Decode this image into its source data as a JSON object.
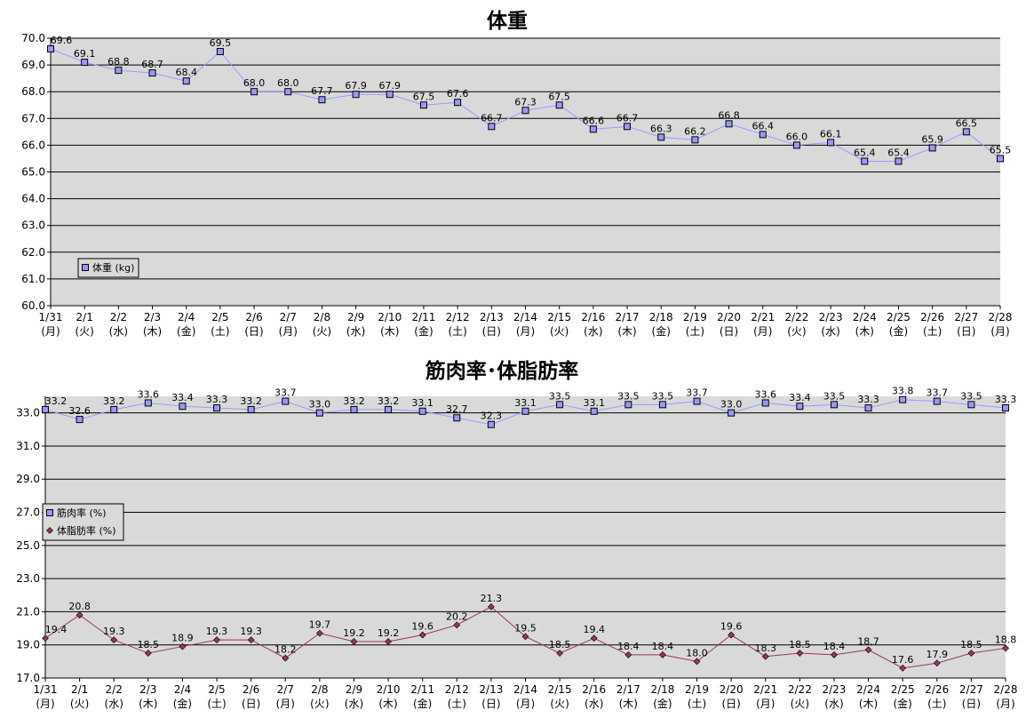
{
  "chart_data": [
    {
      "type": "line",
      "title": "体重",
      "categories": [
        "1/31",
        "2/1",
        "2/2",
        "2/3",
        "2/4",
        "2/5",
        "2/6",
        "2/7",
        "2/8",
        "2/9",
        "2/10",
        "2/11",
        "2/12",
        "2/13",
        "2/14",
        "2/15",
        "2/16",
        "2/17",
        "2/18",
        "2/19",
        "2/20",
        "2/21",
        "2/22",
        "2/23",
        "2/24",
        "2/25",
        "2/26",
        "2/27",
        "2/28"
      ],
      "weekdays": [
        "(月)",
        "(火)",
        "(水)",
        "(木)",
        "(金)",
        "(土)",
        "(日)",
        "(月)",
        "(火)",
        "(水)",
        "(木)",
        "(金)",
        "(土)",
        "(日)",
        "(月)",
        "(火)",
        "(水)",
        "(木)",
        "(金)",
        "(土)",
        "(日)",
        "(月)",
        "(火)",
        "(水)",
        "(木)",
        "(金)",
        "(土)",
        "(日)",
        "(月)"
      ],
      "series": [
        {
          "name": "体重 (kg)",
          "marker": "square",
          "color": "#9999ff",
          "values": [
            69.6,
            69.1,
            68.8,
            68.7,
            68.4,
            69.5,
            68.0,
            68.0,
            67.7,
            67.9,
            67.9,
            67.5,
            67.6,
            66.7,
            67.3,
            67.5,
            66.6,
            66.7,
            66.3,
            66.2,
            66.8,
            66.4,
            66.0,
            66.1,
            65.4,
            65.4,
            65.9,
            66.5,
            65.5
          ]
        }
      ],
      "ylim": [
        60.0,
        70.0
      ],
      "yticks": [
        "60.0",
        "61.0",
        "62.0",
        "63.0",
        "64.0",
        "65.0",
        "66.0",
        "67.0",
        "68.0",
        "69.0",
        "70.0"
      ],
      "grid": true,
      "legend": "bottom-left",
      "plot_bg": "#d9d9d9"
    },
    {
      "type": "line",
      "title": "筋肉率･体脂肪率",
      "categories": [
        "1/31",
        "2/1",
        "2/2",
        "2/3",
        "2/4",
        "2/5",
        "2/6",
        "2/7",
        "2/8",
        "2/9",
        "2/10",
        "2/11",
        "2/12",
        "2/13",
        "2/14",
        "2/15",
        "2/16",
        "2/17",
        "2/18",
        "2/19",
        "2/20",
        "2/21",
        "2/22",
        "2/23",
        "2/24",
        "2/25",
        "2/26",
        "2/27",
        "2/28"
      ],
      "weekdays": [
        "(月)",
        "(火)",
        "(水)",
        "(木)",
        "(金)",
        "(土)",
        "(日)",
        "(月)",
        "(火)",
        "(水)",
        "(木)",
        "(金)",
        "(土)",
        "(日)",
        "(月)",
        "(火)",
        "(水)",
        "(木)",
        "(金)",
        "(土)",
        "(日)",
        "(月)",
        "(火)",
        "(水)",
        "(木)",
        "(金)",
        "(土)",
        "(日)",
        "(月)"
      ],
      "series": [
        {
          "name": "筋肉率 (%)",
          "marker": "square",
          "color": "#9999ff",
          "values": [
            33.2,
            32.6,
            33.2,
            33.6,
            33.4,
            33.3,
            33.2,
            33.7,
            33.0,
            33.2,
            33.2,
            33.1,
            32.7,
            32.3,
            33.1,
            33.5,
            33.1,
            33.5,
            33.5,
            33.7,
            33.0,
            33.6,
            33.4,
            33.5,
            33.3,
            33.8,
            33.7,
            33.5,
            33.3
          ]
        },
        {
          "name": "体脂肪率 (%)",
          "marker": "diamond",
          "color": "#993366",
          "values": [
            19.4,
            20.8,
            19.3,
            18.5,
            18.9,
            19.3,
            19.3,
            18.2,
            19.7,
            19.2,
            19.2,
            19.6,
            20.2,
            21.3,
            19.5,
            18.5,
            19.4,
            18.4,
            18.4,
            18.0,
            19.6,
            18.3,
            18.5,
            18.4,
            18.7,
            17.6,
            17.9,
            18.5,
            18.8
          ]
        }
      ],
      "ylim": [
        17.0,
        34.0
      ],
      "yticks": [
        "17.0",
        "19.0",
        "21.0",
        "23.0",
        "25.0",
        "27.0",
        "29.0",
        "31.0",
        "33.0"
      ],
      "grid": true,
      "legend": "middle-left",
      "plot_bg": "#d9d9d9"
    }
  ]
}
